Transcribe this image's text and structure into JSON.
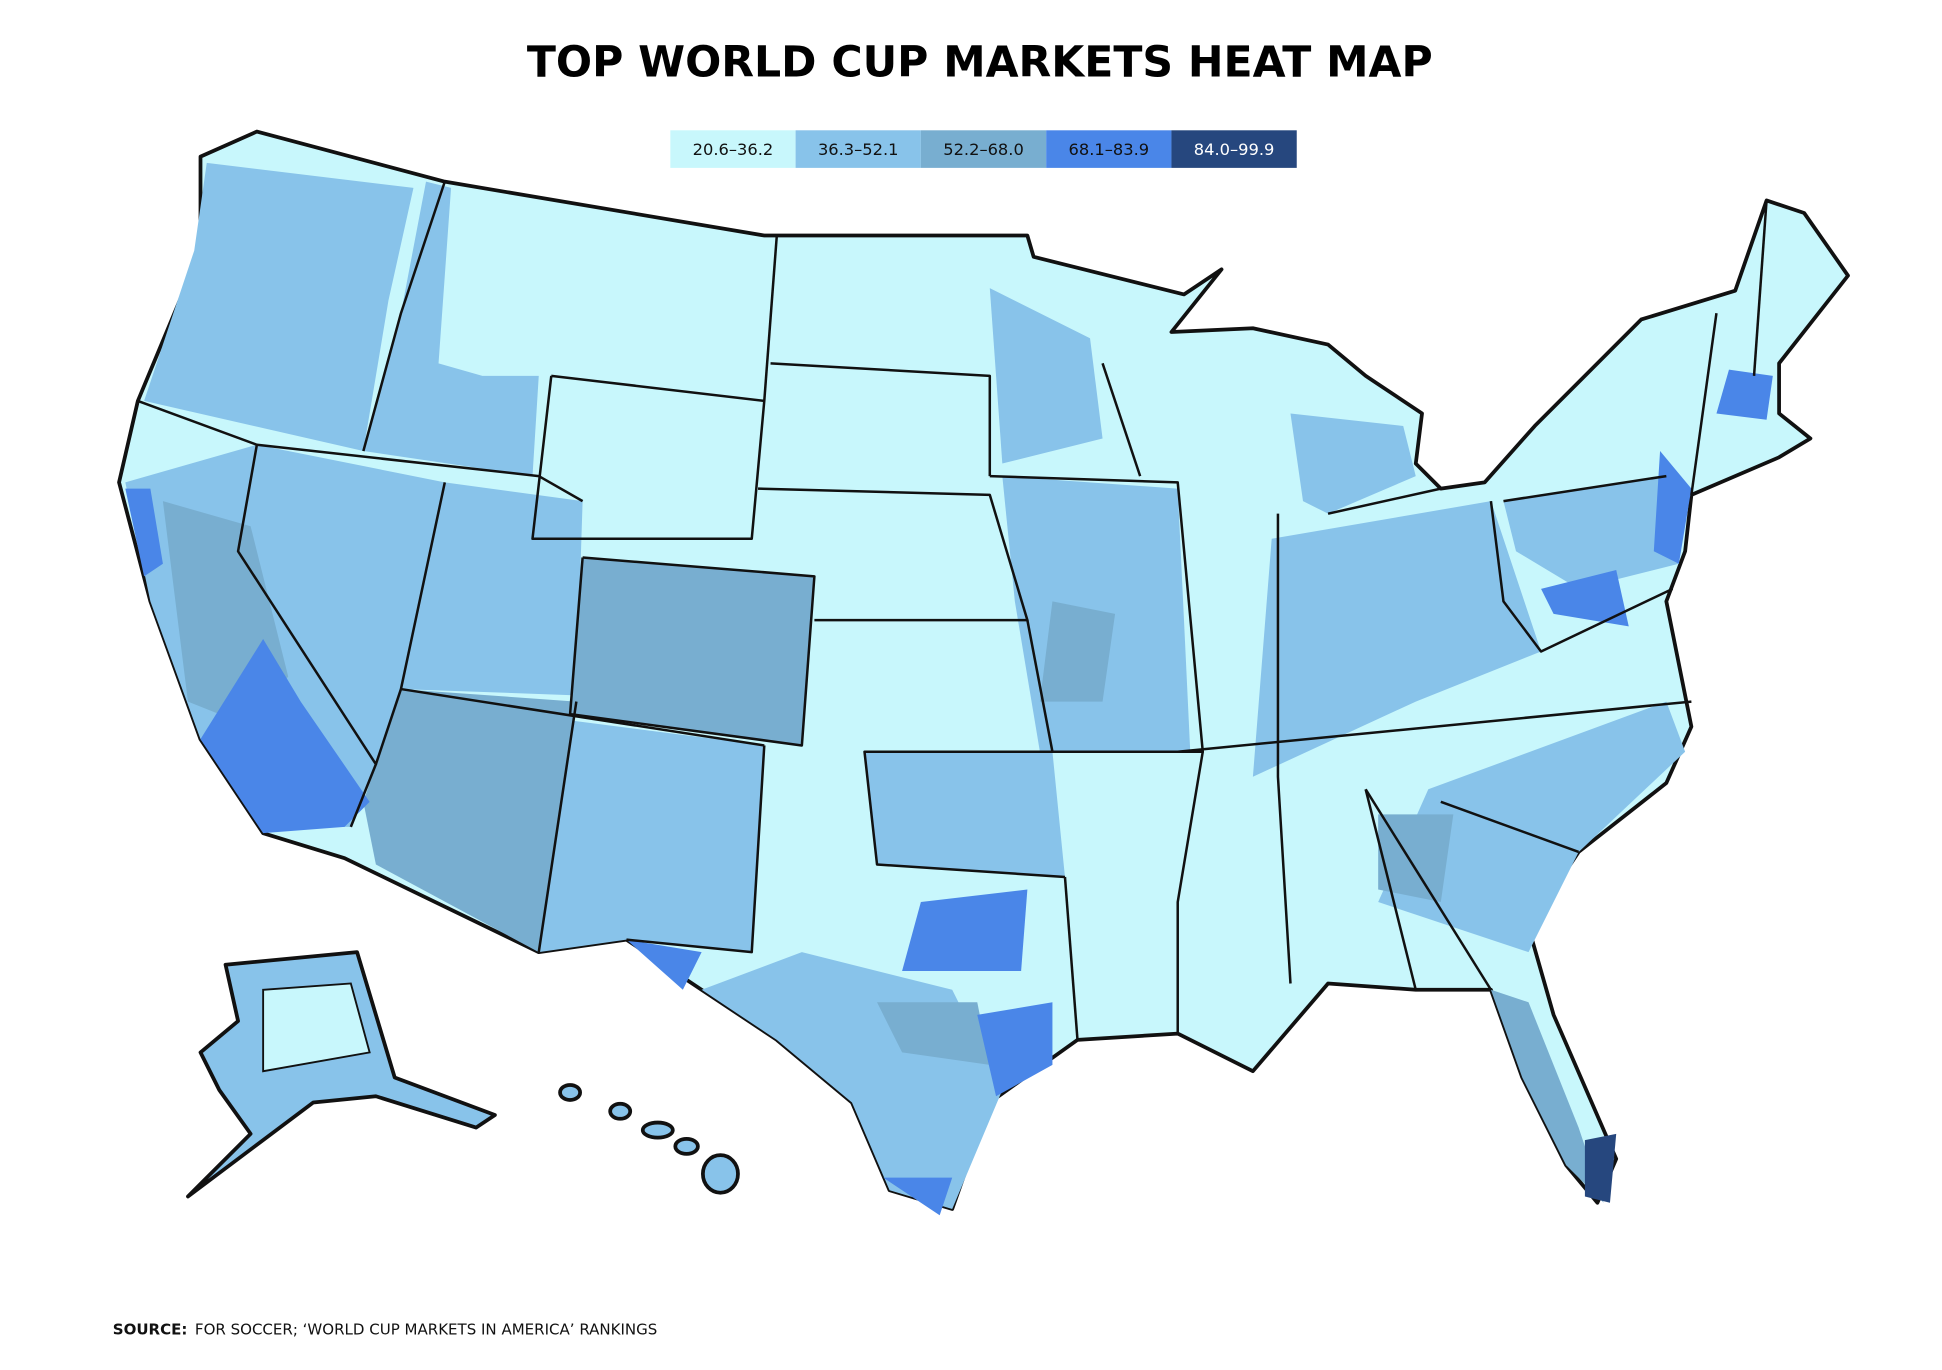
{
  "title": "TOP WORLD CUP MARKETS HEAT MAP",
  "legend": [
    {
      "label": "20.6–36.2",
      "color": "#c8f7fc"
    },
    {
      "label": "36.3–52.1",
      "color": "#88c3ea"
    },
    {
      "label": "52.2–68.0",
      "color": "#78aed0"
    },
    {
      "label": "68.1–83.9",
      "color": "#4a86e8"
    },
    {
      "label": "84.0–99.9",
      "color": "#26477e"
    }
  ],
  "source": {
    "label": "SOURCE:",
    "text": "FOR SOCCER; ‘WORLD CUP MARKETS IN AMERICA’ RANKINGS"
  }
}
